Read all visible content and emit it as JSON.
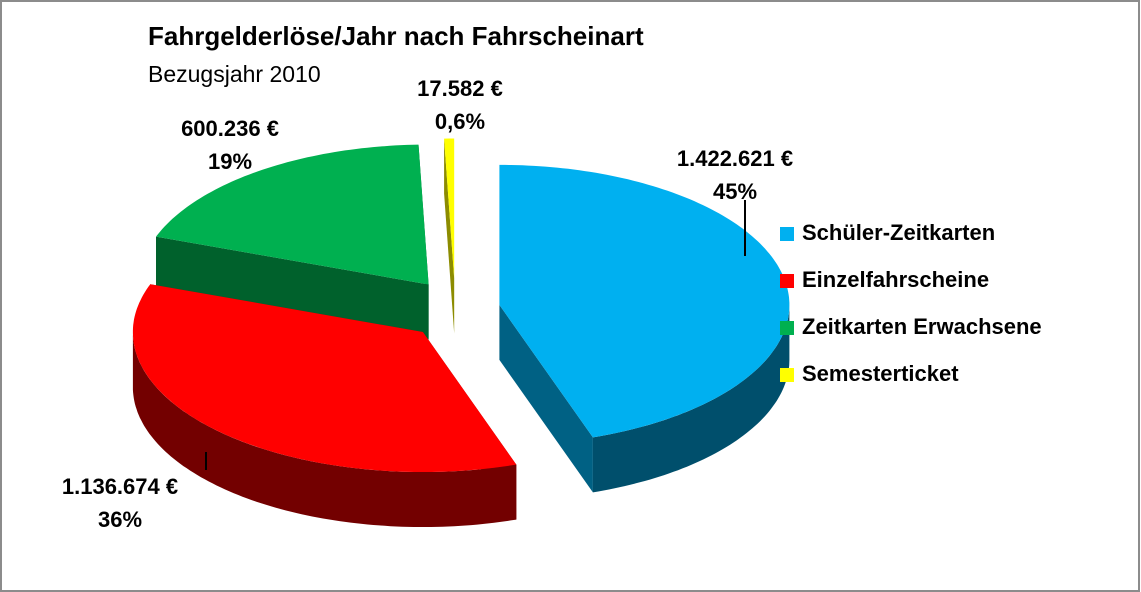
{
  "chart_data": {
    "type": "pie",
    "title": "Fahrgelderlöse/Jahr nach Fahrscheinart",
    "subtitle": "Bezugsjahr 2010",
    "categories": [
      "Schüler-Zeitkarten",
      "Einzelfahrscheine",
      "Zeitkarten Erwachsene",
      "Semesterticket"
    ],
    "values": [
      1422621,
      1136674,
      600236,
      17582
    ],
    "value_labels": [
      "1.422.621 €",
      "1.136.674 €",
      "600.236 €",
      "17.582 €"
    ],
    "percentages": [
      45,
      36,
      19,
      0.6
    ],
    "percentage_labels": [
      "45%",
      "36%",
      "19%",
      "0,6%"
    ],
    "colors": [
      "#00b0f0",
      "#ff0000",
      "#00b050",
      "#ffff00"
    ],
    "legend": "right"
  }
}
